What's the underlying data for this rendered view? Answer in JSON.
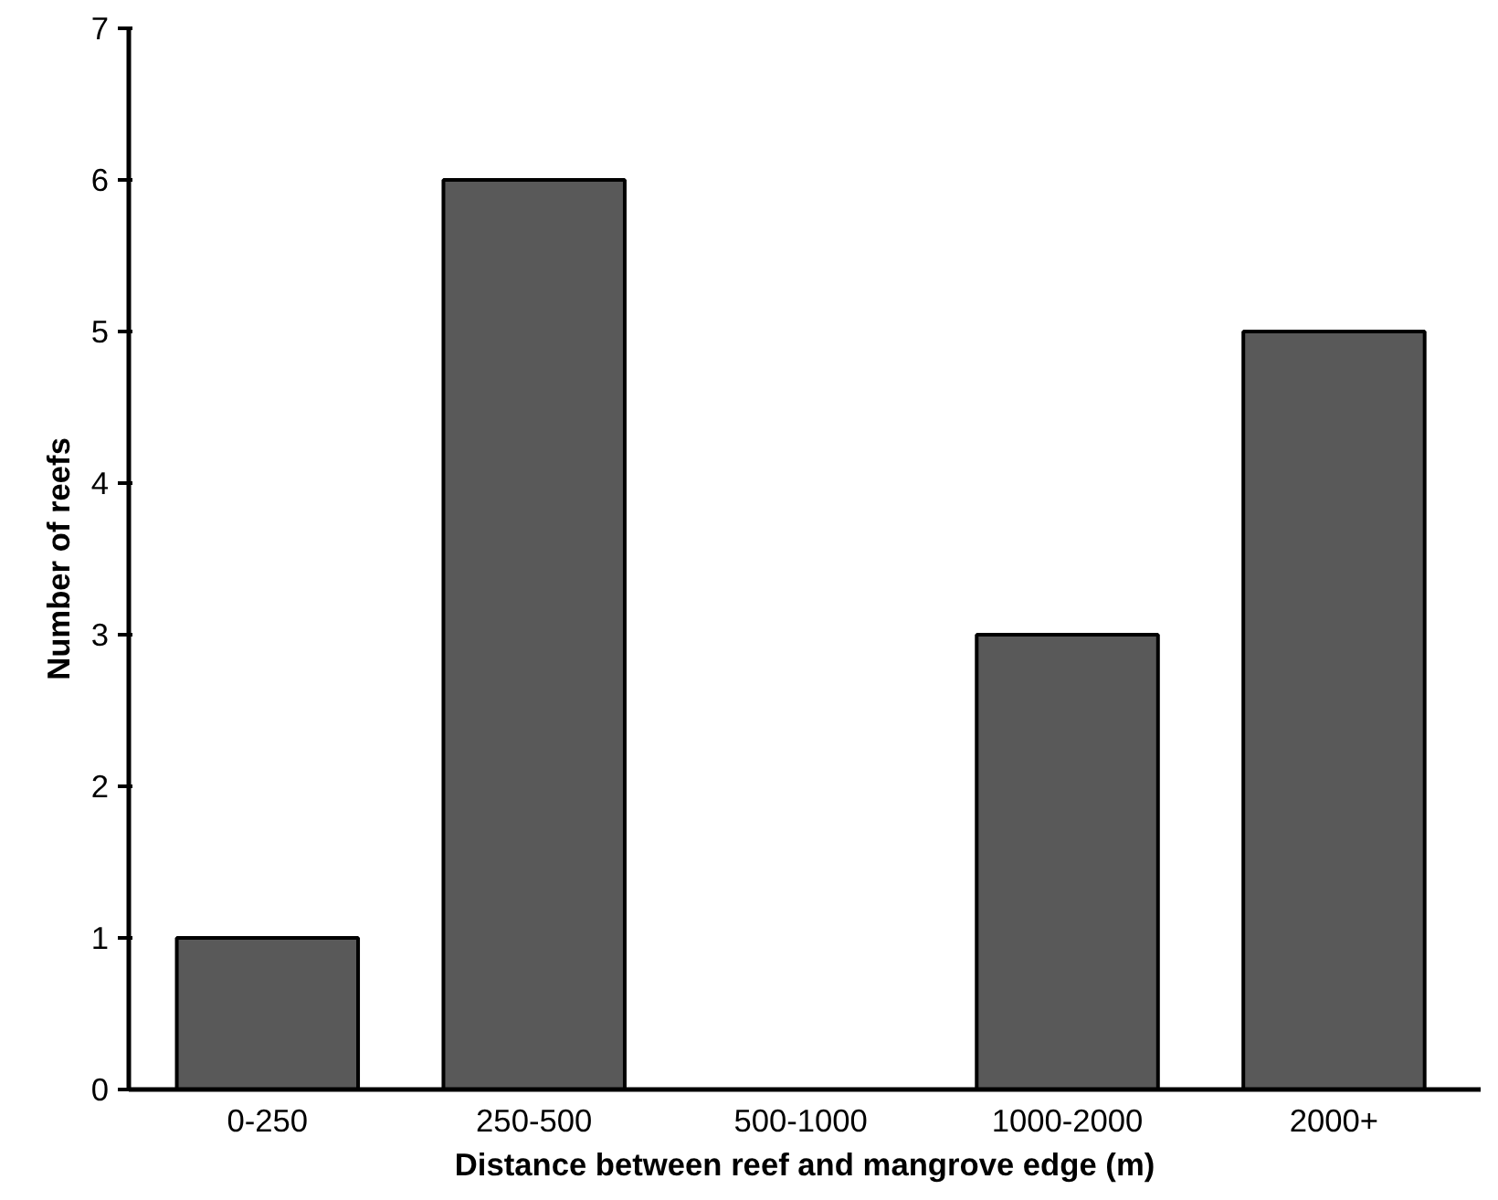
{
  "chart_data": {
    "type": "bar",
    "xlabel": "Distance between reef and mangrove edge (m)",
    "ylabel": "Number of reefs",
    "categories": [
      "0-250",
      "250-500",
      "500-1000",
      "1000-2000",
      "2000+"
    ],
    "values": [
      1,
      6,
      0,
      3,
      5
    ],
    "color": "#595959",
    "ylim": [
      0,
      7
    ],
    "yticks": [
      0,
      1,
      2,
      3,
      4,
      5,
      6,
      7
    ],
    "grid": false
  }
}
